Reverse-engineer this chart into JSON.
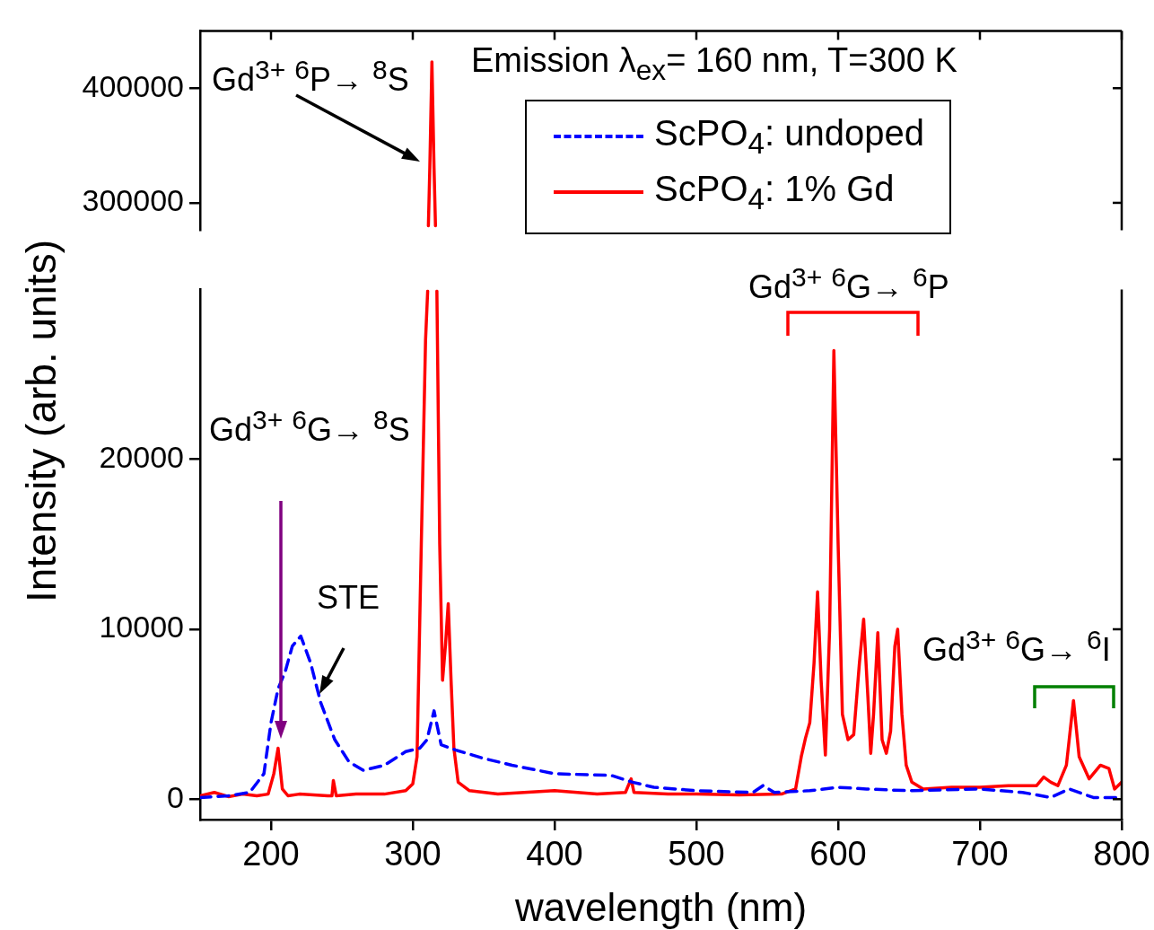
{
  "chart_data": [
    {
      "type": "line",
      "title": "Emission λ$_{ex}$= 160 nm, T=300 K",
      "xlim": [
        150,
        800
      ],
      "xticks": [
        200,
        300,
        400,
        500,
        600,
        700,
        800
      ],
      "ylim": [
        276000,
        450000
      ],
      "yticks": [
        300000,
        400000
      ],
      "tick_labels": "y",
      "legend": "right",
      "marker": "none",
      "annotations": [
        "Gd$^{3+}$  $^{6}$P→ $^{8}$S"
      ],
      "series": [
        {
          "name": "ScPO$_{4}$: undoped",
          "color": "#0000ff",
          "line_style": "dashed"
        },
        {
          "name": "ScPO$_{4}$: 1% Gd",
          "color": "#ff0000",
          "line_style": "solid",
          "x": [
            311,
            312,
            313.5,
            315,
            316
          ],
          "values": [
            280000,
            330000,
            423000,
            330000,
            280000
          ]
        }
      ]
    },
    {
      "type": "line",
      "xlabel": "wavelength (nm)",
      "ylabel": "Intensity (arb. units)",
      "xlim": [
        150,
        800
      ],
      "xticks": [
        200,
        300,
        400,
        500,
        600,
        700,
        800
      ],
      "ylim": [
        -1200,
        30000
      ],
      "yticks": [
        0,
        10000,
        20000
      ],
      "marker": "none",
      "annotations": [
        "Gd$^{3+}$  $^{6}$G→ $^{8}$S",
        "STE",
        "Gd$^{3+}$  $^{6}$G→ $^{6}$P",
        "Gd$^{3+}$  $^{6}$G→ $^{6}$I"
      ],
      "series": [
        {
          "color": "#0000ff",
          "line_style": "dashed",
          "x": [
            150,
            170,
            185,
            195,
            200,
            205,
            210,
            215,
            221,
            228,
            235,
            245,
            255,
            265,
            280,
            295,
            305,
            310,
            315,
            320,
            330,
            350,
            370,
            400,
            440,
            455,
            470,
            500,
            540,
            547,
            555,
            580,
            600,
            620,
            650,
            700,
            730,
            750,
            763,
            780,
            800
          ],
          "values": [
            100,
            200,
            400,
            1500,
            4500,
            6500,
            7500,
            9000,
            9600,
            8000,
            5700,
            3500,
            2200,
            1700,
            2000,
            2800,
            3000,
            3500,
            5200,
            3200,
            2900,
            2400,
            2000,
            1500,
            1400,
            1000,
            700,
            500,
            400,
            800,
            400,
            500,
            700,
            600,
            500,
            600,
            400,
            100,
            600,
            100,
            100
          ]
        },
        {
          "color": "#ff0000",
          "line_style": "solid",
          "x": [
            150,
            160,
            170,
            180,
            190,
            198,
            202,
            205,
            208,
            212,
            220,
            240,
            243,
            244,
            246,
            260,
            280,
            295,
            300,
            303,
            306,
            309,
            310.5,
            313.5,
            317,
            319,
            321,
            323,
            325,
            327,
            329,
            332,
            340,
            360,
            400,
            430,
            450,
            454,
            456,
            480,
            500,
            530,
            560,
            570,
            574,
            577,
            580,
            583,
            585.5,
            588,
            591,
            594,
            597,
            600,
            603,
            607,
            611,
            615,
            618,
            621,
            623,
            625,
            628,
            631,
            634,
            637,
            640,
            642,
            645,
            648,
            652,
            660,
            680,
            700,
            720,
            740,
            745,
            750,
            755,
            761,
            766,
            770,
            777,
            785,
            791,
            795,
            800
          ],
          "values": [
            200,
            400,
            150,
            300,
            200,
            300,
            1500,
            3000,
            600,
            200,
            300,
            200,
            200,
            1100,
            200,
            300,
            300,
            500,
            900,
            2500,
            15000,
            27000,
            29900,
            null,
            29900,
            15000,
            7000,
            9000,
            11500,
            7000,
            3000,
            1000,
            500,
            300,
            500,
            300,
            400,
            1200,
            400,
            300,
            300,
            250,
            300,
            600,
            2500,
            3600,
            4500,
            8000,
            12200,
            7000,
            2600,
            10000,
            26400,
            15000,
            5000,
            3500,
            3800,
            8000,
            10600,
            6000,
            2700,
            5000,
            9800,
            3500,
            2700,
            4000,
            9000,
            10000,
            5000,
            2000,
            1000,
            600,
            700,
            700,
            800,
            800,
            1300,
            1000,
            800,
            2000,
            5800,
            2500,
            1200,
            2000,
            1800,
            600,
            1000
          ]
        }
      ]
    }
  ]
}
